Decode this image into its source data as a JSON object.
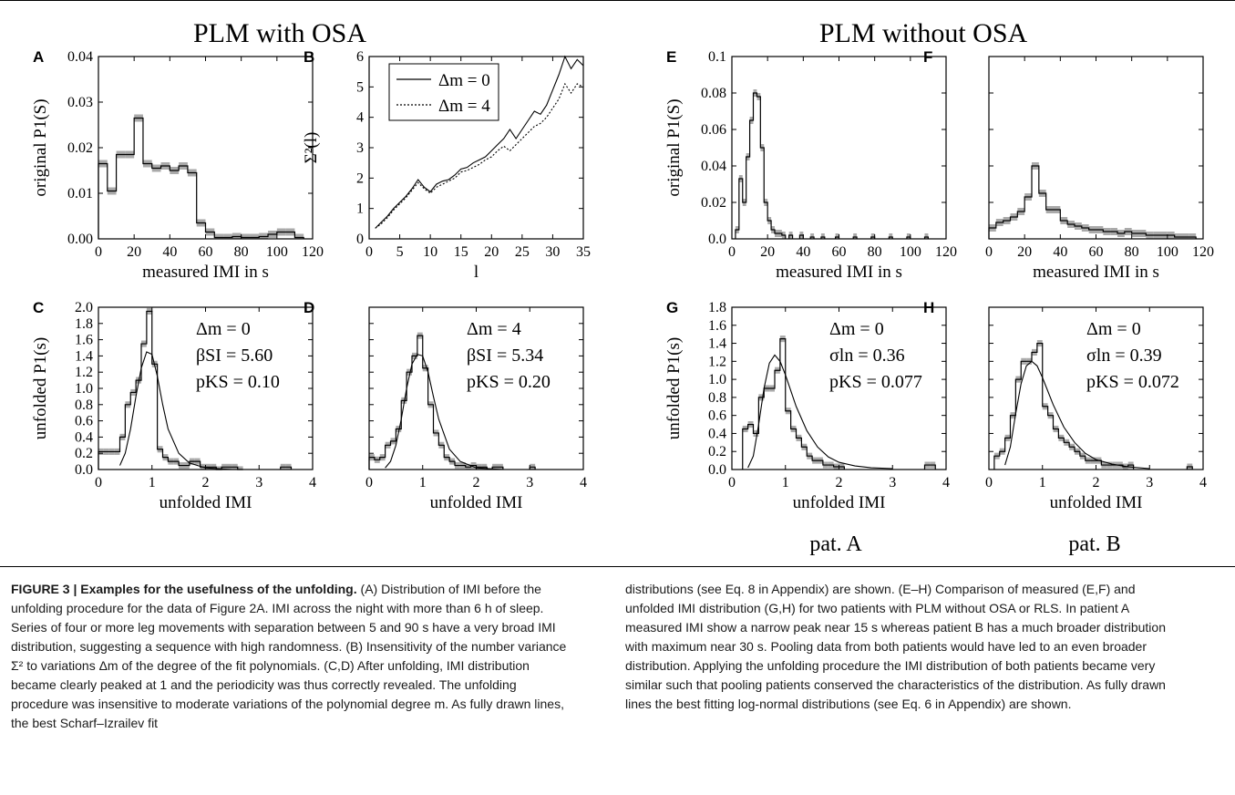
{
  "figure": {
    "group_titles": [
      "PLM with OSA",
      "PLM without OSA"
    ],
    "patient_labels": [
      "pat. A",
      "pat. B"
    ],
    "rule_color": "#000000",
    "hist_band_color": "#aaaaaa"
  },
  "chart_data": [
    {
      "panel": "A",
      "type": "histogram",
      "xlabel": "measured IMI in s",
      "ylabel": "original P1(S)",
      "xlim": [
        0,
        120
      ],
      "ylim": [
        0,
        0.04
      ],
      "xticks": [
        "0",
        "20",
        "40",
        "60",
        "80",
        "100",
        "120"
      ],
      "yticks": [
        "0.00",
        "0.01",
        "0.02",
        "0.03",
        "0.04"
      ],
      "bin_width": 5,
      "series": [
        {
          "x": [
            5,
            10,
            15,
            20,
            25,
            30,
            35,
            40,
            45,
            50,
            55,
            60,
            65,
            70,
            75,
            80,
            85,
            90,
            95,
            100,
            105,
            110,
            115
          ],
          "values": [
            0.0165,
            0.0105,
            0.0185,
            0.0185,
            0.0265,
            0.0165,
            0.0155,
            0.016,
            0.015,
            0.016,
            0.0145,
            0.0035,
            0.0015,
            0.0003,
            0.0003,
            0.0005,
            0.0003,
            0.0003,
            0.0005,
            0.001,
            0.0015,
            0.0015,
            0.0003
          ]
        }
      ]
    },
    {
      "panel": "B",
      "type": "line",
      "xlabel": "l",
      "ylabel": "Σ²(l)",
      "xlim": [
        0,
        35
      ],
      "ylim": [
        0,
        6
      ],
      "xticks": [
        "0",
        "5",
        "10",
        "15",
        "20",
        "25",
        "30",
        "35"
      ],
      "yticks": [
        "0",
        "1",
        "2",
        "3",
        "4",
        "5",
        "6"
      ],
      "legend": "top-left",
      "x": [
        1,
        2,
        3,
        4,
        5,
        6,
        7,
        8,
        9,
        10,
        11,
        12,
        13,
        14,
        15,
        16,
        17,
        18,
        19,
        20,
        21,
        22,
        23,
        24,
        25,
        26,
        27,
        28,
        29,
        30,
        31,
        32,
        33,
        34,
        35
      ],
      "series": [
        {
          "name": "Δm = 0",
          "style": "solid",
          "values": [
            0.35,
            0.55,
            0.75,
            1.0,
            1.2,
            1.4,
            1.65,
            1.95,
            1.7,
            1.55,
            1.8,
            1.9,
            1.95,
            2.1,
            2.3,
            2.35,
            2.5,
            2.6,
            2.7,
            2.9,
            3.1,
            3.3,
            3.6,
            3.3,
            3.6,
            3.9,
            4.2,
            4.1,
            4.4,
            4.9,
            5.4,
            6.0,
            5.6,
            5.9,
            5.7
          ]
        },
        {
          "name": "Δm = 4",
          "style": "dotted",
          "values": [
            0.35,
            0.5,
            0.7,
            0.95,
            1.15,
            1.35,
            1.6,
            1.85,
            1.65,
            1.5,
            1.7,
            1.8,
            1.9,
            2.0,
            2.2,
            2.25,
            2.35,
            2.45,
            2.6,
            2.7,
            2.9,
            3.05,
            2.9,
            3.1,
            3.3,
            3.5,
            3.7,
            3.8,
            4.0,
            4.3,
            4.6,
            5.1,
            4.8,
            5.1,
            5.0
          ]
        }
      ]
    },
    {
      "panel": "C",
      "type": "histogram",
      "xlabel": "unfolded IMI",
      "ylabel": "unfolded P1(s)",
      "xlim": [
        0,
        4
      ],
      "ylim": [
        0,
        2.0
      ],
      "xticks": [
        "0",
        "1",
        "2",
        "3",
        "4"
      ],
      "yticks": [
        "0.0",
        "0.2",
        "0.4",
        "0.6",
        "0.8",
        "1.0",
        "1.2",
        "1.4",
        "1.6",
        "1.8",
        "2.0"
      ],
      "annotations": [
        "Δm = 0",
        "βSI = 5.60",
        "pKS = 0.10"
      ],
      "bin_width": 0.1,
      "series": [
        {
          "x": [
            0.1,
            0.2,
            0.3,
            0.4,
            0.5,
            0.6,
            0.7,
            0.8,
            0.9,
            1.0,
            1.1,
            1.2,
            1.3,
            1.4,
            1.5,
            1.6,
            1.7,
            1.8,
            1.9,
            2.0,
            2.1,
            2.2,
            2.3,
            2.4,
            2.5,
            2.6,
            2.7,
            3.5,
            3.6
          ],
          "values": [
            0.22,
            0.22,
            0.22,
            0.22,
            0.4,
            0.8,
            0.95,
            1.1,
            1.55,
            1.95,
            1.3,
            0.25,
            0.15,
            0.1,
            0.1,
            0.05,
            0.05,
            0.1,
            0.1,
            0.03,
            0.03,
            0.03,
            0.0,
            0.03,
            0.03,
            0.03,
            0.0,
            0.03,
            0.03
          ]
        }
      ],
      "fit": {
        "name": "Scharf–Izrailev fit",
        "values_x": [
          0.4,
          0.5,
          0.6,
          0.7,
          0.8,
          0.9,
          1.0,
          1.1,
          1.2,
          1.3,
          1.5,
          1.7,
          2.0,
          2.5
        ],
        "values_y": [
          0.05,
          0.2,
          0.5,
          0.9,
          1.25,
          1.45,
          1.42,
          1.15,
          0.8,
          0.5,
          0.2,
          0.08,
          0.02,
          0.0
        ]
      }
    },
    {
      "panel": "D",
      "type": "histogram",
      "xlabel": "unfolded IMI",
      "ylabel": "",
      "xlim": [
        0,
        4
      ],
      "ylim": [
        0,
        2.0
      ],
      "xticks": [
        "0",
        "1",
        "2",
        "3",
        "4"
      ],
      "yticks": [],
      "annotations": [
        "Δm = 4",
        "βSI = 5.34",
        "pKS = 0.20"
      ],
      "bin_width": 0.1,
      "series": [
        {
          "x": [
            0.1,
            0.2,
            0.3,
            0.4,
            0.5,
            0.6,
            0.7,
            0.8,
            0.9,
            1.0,
            1.1,
            1.2,
            1.3,
            1.4,
            1.5,
            1.6,
            1.7,
            1.8,
            1.9,
            2.0,
            2.1,
            2.2,
            2.4,
            2.5,
            3.1
          ],
          "values": [
            0.15,
            0.12,
            0.15,
            0.3,
            0.35,
            0.5,
            0.85,
            1.2,
            1.4,
            1.65,
            1.25,
            0.8,
            0.45,
            0.3,
            0.15,
            0.1,
            0.05,
            0.05,
            0.03,
            0.05,
            0.03,
            0.03,
            0.03,
            0.03,
            0.03
          ]
        }
      ],
      "fit": {
        "name": "Scharf–Izrailev fit",
        "values_x": [
          0.3,
          0.4,
          0.5,
          0.6,
          0.7,
          0.8,
          0.9,
          1.0,
          1.1,
          1.2,
          1.3,
          1.5,
          1.7,
          2.0,
          2.5
        ],
        "values_y": [
          0.02,
          0.1,
          0.3,
          0.62,
          1.0,
          1.3,
          1.42,
          1.4,
          1.2,
          0.9,
          0.62,
          0.25,
          0.1,
          0.02,
          0.0
        ]
      }
    },
    {
      "panel": "E",
      "type": "histogram",
      "xlabel": "measured IMI in s",
      "ylabel": "original P1(S)",
      "xlim": [
        0,
        120
      ],
      "ylim": [
        0,
        0.1
      ],
      "xticks": [
        "0",
        "20",
        "40",
        "60",
        "80",
        "100",
        "120"
      ],
      "yticks": [
        "0.0",
        "0.02",
        "0.04",
        "0.06",
        "0.08",
        "0.1"
      ],
      "bin_width": 2,
      "series": [
        {
          "x": [
            4,
            6,
            8,
            10,
            12,
            14,
            16,
            18,
            20,
            22,
            24,
            26,
            28,
            30,
            34,
            40,
            46,
            52,
            60,
            70,
            80,
            90,
            100,
            110
          ],
          "values": [
            0.005,
            0.033,
            0.02,
            0.045,
            0.065,
            0.08,
            0.078,
            0.05,
            0.02,
            0.01,
            0.005,
            0.003,
            0.003,
            0.002,
            0.002,
            0.002,
            0.001,
            0.001,
            0.001,
            0.001,
            0.001,
            0.001,
            0.001,
            0.001
          ]
        }
      ]
    },
    {
      "panel": "F",
      "type": "histogram",
      "xlabel": "measured IMI in s",
      "ylabel": "",
      "xlim": [
        0,
        120
      ],
      "ylim": [
        0,
        0.1
      ],
      "xticks": [
        "0",
        "20",
        "40",
        "60",
        "80",
        "100",
        "120"
      ],
      "yticks": [],
      "bin_width": 4,
      "series": [
        {
          "x": [
            4,
            8,
            12,
            16,
            20,
            24,
            28,
            32,
            36,
            40,
            44,
            48,
            52,
            56,
            60,
            64,
            68,
            72,
            76,
            80,
            84,
            88,
            92,
            96,
            100,
            104,
            108,
            112,
            116
          ],
          "values": [
            0.006,
            0.009,
            0.01,
            0.012,
            0.015,
            0.023,
            0.04,
            0.025,
            0.016,
            0.016,
            0.01,
            0.008,
            0.007,
            0.006,
            0.005,
            0.005,
            0.004,
            0.004,
            0.003,
            0.004,
            0.003,
            0.003,
            0.002,
            0.002,
            0.002,
            0.002,
            0.001,
            0.001,
            0.001
          ]
        }
      ]
    },
    {
      "panel": "G",
      "type": "histogram",
      "xlabel": "unfolded IMI",
      "ylabel": "unfolded P1(s)",
      "xlim": [
        0,
        4
      ],
      "ylim": [
        0,
        1.8
      ],
      "xticks": [
        "0",
        "1",
        "2",
        "3",
        "4"
      ],
      "yticks": [
        "0.0",
        "0.2",
        "0.4",
        "0.6",
        "0.8",
        "1.0",
        "1.2",
        "1.4",
        "1.6",
        "1.8"
      ],
      "annotations": [
        "Δm = 0",
        "σln = 0.36",
        "pKS = 0.077"
      ],
      "bin_width": 0.1,
      "series": [
        {
          "x": [
            0.3,
            0.4,
            0.5,
            0.6,
            0.7,
            0.8,
            0.9,
            1.0,
            1.1,
            1.2,
            1.3,
            1.4,
            1.5,
            1.6,
            1.7,
            1.8,
            1.9,
            2.0,
            2.1,
            3.7,
            3.8
          ],
          "values": [
            0.45,
            0.5,
            0.4,
            0.8,
            0.9,
            0.9,
            1.1,
            1.45,
            0.65,
            0.45,
            0.35,
            0.25,
            0.15,
            0.1,
            0.1,
            0.05,
            0.05,
            0.03,
            0.03,
            0.05,
            0.05
          ]
        }
      ],
      "fit": {
        "name": "log-normal fit",
        "values_x": [
          0.3,
          0.4,
          0.5,
          0.6,
          0.7,
          0.8,
          0.9,
          1.0,
          1.2,
          1.4,
          1.6,
          1.8,
          2.0,
          2.3,
          2.6,
          3.0
        ],
        "values_y": [
          0.02,
          0.15,
          0.5,
          0.9,
          1.18,
          1.27,
          1.2,
          1.05,
          0.7,
          0.43,
          0.25,
          0.14,
          0.08,
          0.04,
          0.02,
          0.01
        ]
      }
    },
    {
      "panel": "H",
      "type": "histogram",
      "xlabel": "unfolded IMI",
      "ylabel": "",
      "xlim": [
        0,
        4
      ],
      "ylim": [
        0,
        1.8
      ],
      "xticks": [
        "0",
        "1",
        "2",
        "3",
        "4"
      ],
      "yticks": [],
      "annotations": [
        "Δm = 0",
        "σln = 0.39",
        "pKS = 0.072"
      ],
      "bin_width": 0.1,
      "series": [
        {
          "x": [
            0.2,
            0.3,
            0.4,
            0.5,
            0.6,
            0.7,
            0.8,
            0.9,
            1.0,
            1.1,
            1.2,
            1.3,
            1.4,
            1.5,
            1.6,
            1.7,
            1.8,
            1.9,
            2.0,
            2.1,
            2.2,
            2.3,
            2.4,
            2.5,
            2.6,
            2.7,
            3.8
          ],
          "values": [
            0.15,
            0.2,
            0.35,
            0.6,
            1.0,
            1.2,
            1.2,
            1.3,
            1.4,
            0.7,
            0.6,
            0.45,
            0.35,
            0.3,
            0.25,
            0.2,
            0.15,
            0.1,
            0.1,
            0.1,
            0.05,
            0.05,
            0.05,
            0.05,
            0.03,
            0.05,
            0.03
          ]
        }
      ],
      "fit": {
        "name": "log-normal fit",
        "values_x": [
          0.3,
          0.4,
          0.5,
          0.6,
          0.7,
          0.8,
          0.9,
          1.0,
          1.2,
          1.4,
          1.6,
          1.8,
          2.0,
          2.3,
          2.6,
          3.0
        ],
        "values_y": [
          0.05,
          0.25,
          0.62,
          0.95,
          1.15,
          1.2,
          1.15,
          1.02,
          0.72,
          0.47,
          0.3,
          0.18,
          0.11,
          0.06,
          0.03,
          0.01
        ]
      }
    }
  ],
  "caption": {
    "figure_label": "FIGURE 3 | Examples for the usefulness of the unfolding.",
    "left_text": "(A) Distribution of IMI before the unfolding procedure for the data of Figure 2A. IMI across the night with more than 6 h of sleep. Series of four or more leg movements with separation between 5 and 90 s have a very broad IMI distribution, suggesting a sequence with high randomness. (B) Insensitivity of the number variance Σ² to variations Δm of the degree of the fit polynomials. (C,D) After unfolding, IMI distribution became clearly peaked at 1 and the periodicity was thus correctly revealed. The unfolding procedure was insensitive to moderate variations of the polynomial degree m. As fully drawn lines, the best Scharf–Izrailev fit",
    "right_text": "distributions (see Eq. 8 in Appendix) are shown. (E–H) Comparison of measured (E,F) and unfolded IMI distribution (G,H) for two patients with PLM without OSA or RLS. In patient A measured IMI show a narrow peak near 15 s whereas patient B has a much broader distribution with maximum near 30 s. Pooling data from both patients would have led to an even broader distribution. Applying the unfolding procedure the IMI distribution of both patients became very similar such that pooling patients conserved the characteristics of the distribution. As fully drawn lines the best fitting log-normal distributions (see Eq. 6 in Appendix) are shown."
  }
}
